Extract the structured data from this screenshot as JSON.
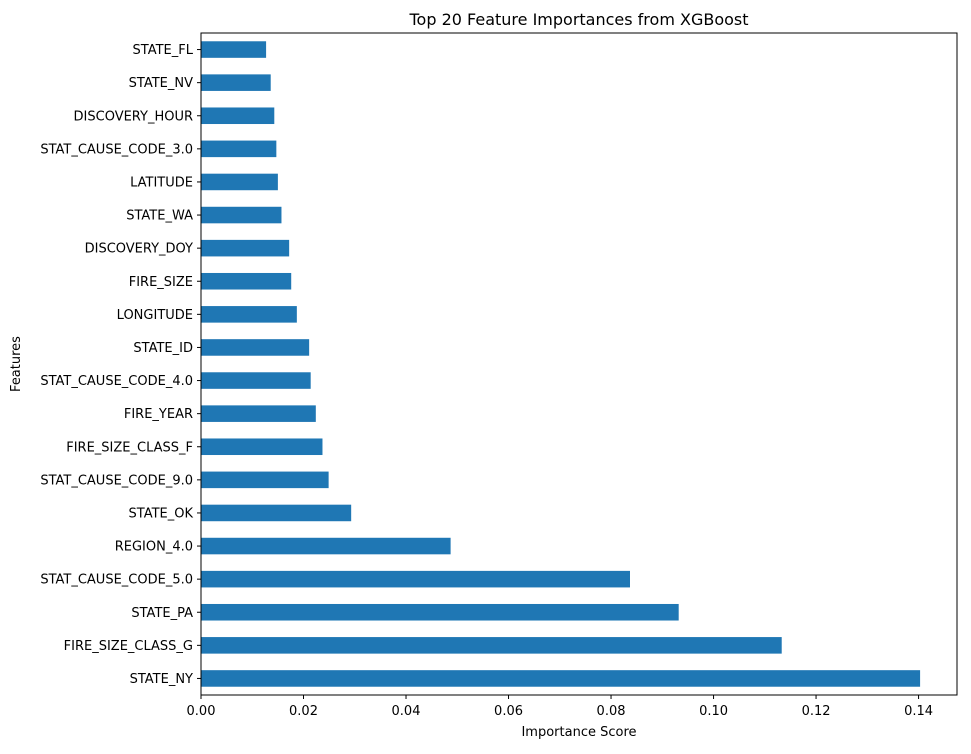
{
  "chart_data": {
    "type": "bar",
    "orientation": "horizontal",
    "title": "Top 20 Feature Importances from XGBoost",
    "xlabel": "Importance Score",
    "ylabel": "Features",
    "xlim": [
      0,
      0.1475
    ],
    "xticks": [
      0.0,
      0.02,
      0.04,
      0.06,
      0.08,
      0.1,
      0.12,
      0.14
    ],
    "xtick_labels": [
      "0.00",
      "0.02",
      "0.04",
      "0.06",
      "0.08",
      "0.10",
      "0.12",
      "0.14"
    ],
    "grid": false,
    "bar_color": "#1f77b4",
    "categories": [
      "STATE_NY",
      "FIRE_SIZE_CLASS_G",
      "STATE_PA",
      "STAT_CAUSE_CODE_5.0",
      "REGION_4.0",
      "STATE_OK",
      "STAT_CAUSE_CODE_9.0",
      "FIRE_SIZE_CLASS_F",
      "FIRE_YEAR",
      "STAT_CAUSE_CODE_4.0",
      "STATE_ID",
      "LONGITUDE",
      "FIRE_SIZE",
      "DISCOVERY_DOY",
      "STATE_WA",
      "LATITUDE",
      "STAT_CAUSE_CODE_3.0",
      "DISCOVERY_HOUR",
      "STATE_NV",
      "STATE_FL"
    ],
    "values": [
      0.1403,
      0.1133,
      0.0932,
      0.0837,
      0.0487,
      0.0293,
      0.0249,
      0.0237,
      0.0224,
      0.0214,
      0.0211,
      0.0187,
      0.0176,
      0.0172,
      0.0157,
      0.015,
      0.0147,
      0.0143,
      0.0136,
      0.0127
    ]
  }
}
